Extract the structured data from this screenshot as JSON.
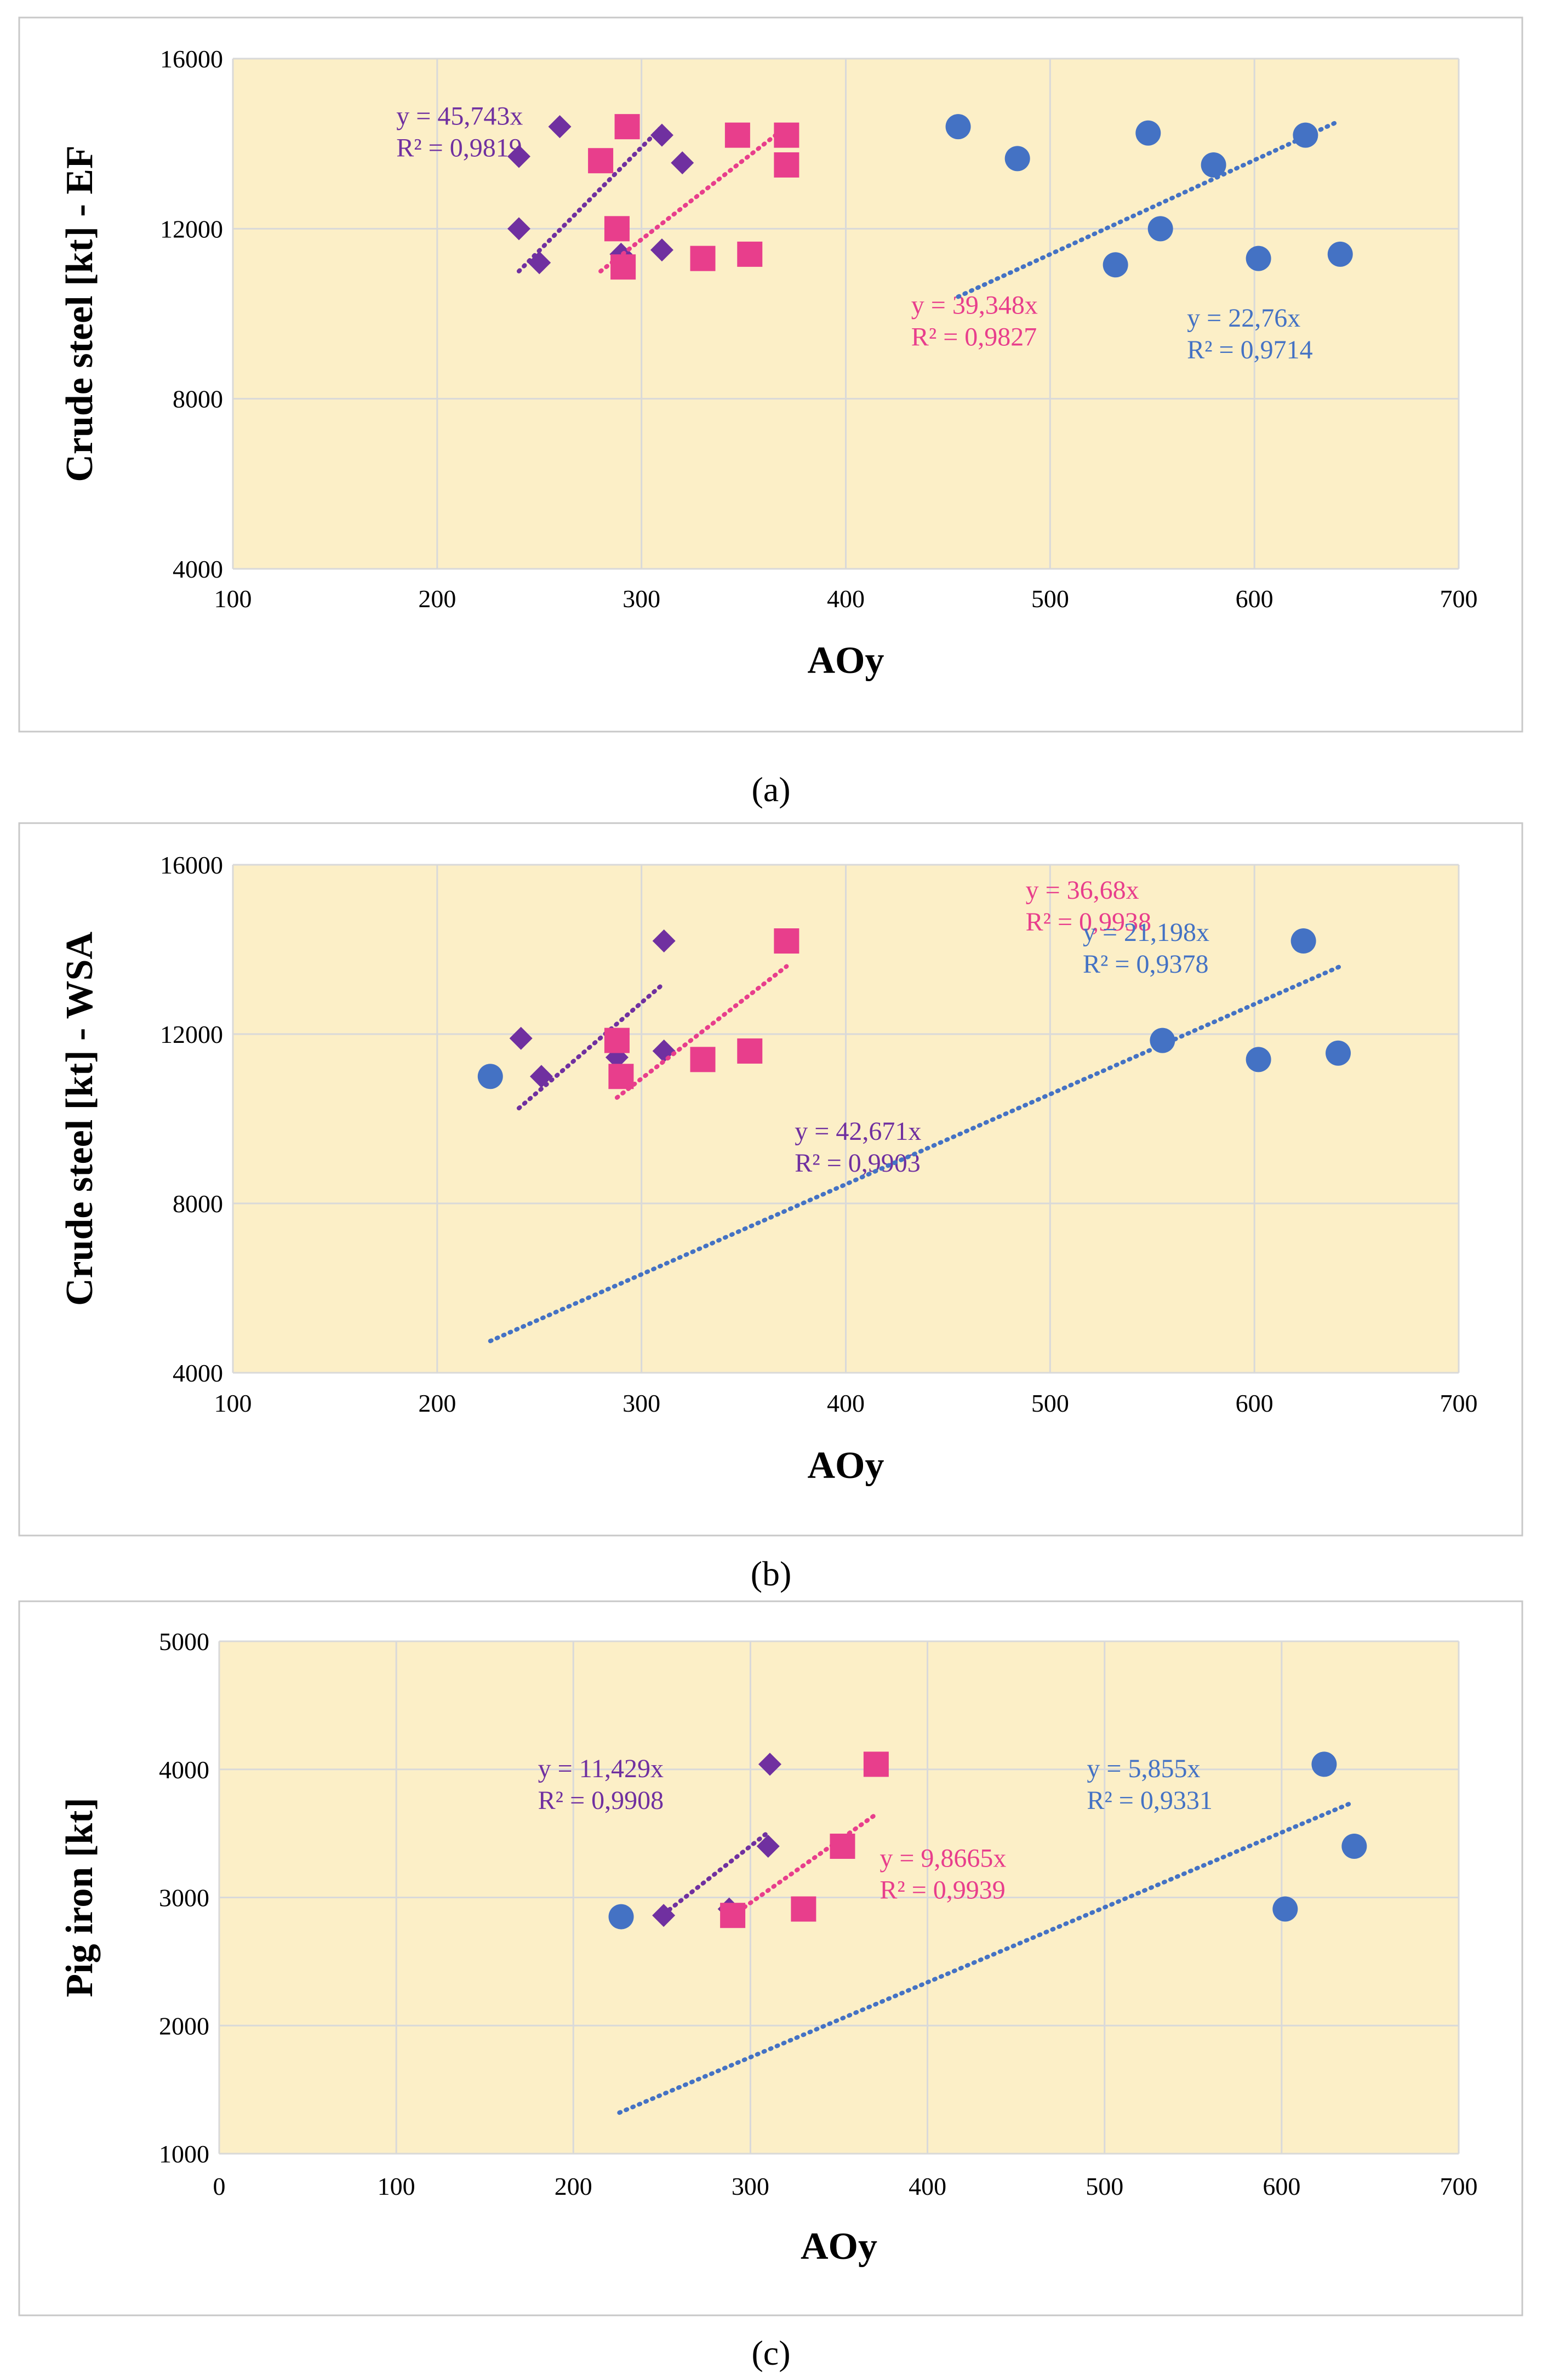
{
  "colors": {
    "plot_bg": "#FCEFC7",
    "grid": "#D9D9D9",
    "border": "#C8C8C8",
    "purple": "#7030A0",
    "pink": "#E83E8C",
    "blue": "#4472C4"
  },
  "chart_data": [
    {
      "type": "scatter",
      "caption": "(a)",
      "xlabel": "AOy",
      "ylabel": "Crude steel [kt] - EF",
      "xlim": [
        100,
        700
      ],
      "ylim": [
        4000,
        16000
      ],
      "xticks": [
        100,
        200,
        300,
        400,
        500,
        600,
        700
      ],
      "yticks": [
        4000,
        8000,
        12000,
        16000
      ],
      "grid": true,
      "series": [
        {
          "name": "purple",
          "marker": "diamond",
          "color": "#7030A0",
          "points": [
            [
              240,
              13700
            ],
            [
              260,
              14400
            ],
            [
              310,
              14200
            ],
            [
              320,
              13550
            ],
            [
              240,
              12000
            ],
            [
              250,
              11200
            ],
            [
              290,
              11400
            ],
            [
              310,
              11500
            ]
          ],
          "trend": {
            "x": [
              240,
              310
            ],
            "y": [
              11000,
              14400
            ]
          },
          "equation": "y = 45,743x",
          "r2": "R² = 0,9819",
          "label_anchor": [
            180,
            14450
          ]
        },
        {
          "name": "pink",
          "marker": "square",
          "color": "#E83E8C",
          "points": [
            [
              280,
              13600
            ],
            [
              293,
              14400
            ],
            [
              347,
              14200
            ],
            [
              371,
              14200
            ],
            [
              371,
              13500
            ],
            [
              288,
              12000
            ],
            [
              291,
              11100
            ],
            [
              330,
              11300
            ],
            [
              353,
              11400
            ]
          ],
          "trend": {
            "x": [
              280,
              371
            ],
            "y": [
              11000,
              14400
            ]
          },
          "equation": "y = 39,348x",
          "r2": "R² = 0,9827",
          "label_anchor": [
            432,
            10000
          ]
        },
        {
          "name": "blue",
          "marker": "circle",
          "color": "#4472C4",
          "points": [
            [
              455,
              14400
            ],
            [
              484,
              13650
            ],
            [
              548,
              14250
            ],
            [
              580,
              13500
            ],
            [
              625,
              14200
            ],
            [
              532,
              11150
            ],
            [
              554,
              12000
            ],
            [
              602,
              11300
            ],
            [
              642,
              11400
            ]
          ],
          "trend": {
            "x": [
              455,
              640
            ],
            "y": [
              10400,
              14500
            ]
          },
          "equation": "y = 22,76x",
          "r2": "R² = 0,9714",
          "label_anchor": [
            567,
            9700
          ]
        }
      ]
    },
    {
      "type": "scatter",
      "caption": "(b)",
      "xlabel": "AOy",
      "ylabel": "Crude steel [kt] - WSA",
      "xlim": [
        100,
        700
      ],
      "ylim": [
        4000,
        16000
      ],
      "xticks": [
        100,
        200,
        300,
        400,
        500,
        600,
        700
      ],
      "yticks": [
        4000,
        8000,
        12000,
        16000
      ],
      "grid": true,
      "series": [
        {
          "name": "purple",
          "marker": "diamond",
          "color": "#7030A0",
          "points": [
            [
              311,
              14200
            ],
            [
              241,
              11900
            ],
            [
              251,
              11000
            ],
            [
              288,
              11450
            ],
            [
              311,
              11600
            ]
          ],
          "trend": {
            "x": [
              240,
              311
            ],
            "y": [
              10250,
              13200
            ]
          },
          "equation": "y = 42,671x",
          "r2": "R² = 0,9903",
          "label_anchor": [
            375,
            9500
          ]
        },
        {
          "name": "pink",
          "marker": "square",
          "color": "#E83E8C",
          "points": [
            [
              371,
              14200
            ],
            [
              288,
              11850
            ],
            [
              290,
              11000
            ],
            [
              330,
              11400
            ],
            [
              353,
              11600
            ]
          ],
          "trend": {
            "x": [
              288,
              371
            ],
            "y": [
              10500,
              13600
            ]
          },
          "equation": "y = 36,68x",
          "r2": "R² = 0,9938",
          "label_anchor": [
            488,
            15200
          ]
        },
        {
          "name": "blue",
          "marker": "circle",
          "color": "#4472C4",
          "points": [
            [
              226,
              11000
            ],
            [
              555,
              11850
            ],
            [
              624,
              14200
            ],
            [
              602,
              11400
            ],
            [
              641,
              11550
            ]
          ],
          "trend": {
            "x": [
              226,
              642
            ],
            "y": [
              4750,
              13600
            ]
          },
          "equation": "y = 21,198x",
          "r2": "R² = 0,9378",
          "label_anchor": [
            516,
            14200
          ]
        }
      ]
    },
    {
      "type": "scatter",
      "caption": "(c)",
      "xlabel": "AOy",
      "ylabel": "Pig iron [kt]",
      "xlim": [
        0,
        700
      ],
      "ylim": [
        1000,
        5000
      ],
      "xticks": [
        0,
        100,
        200,
        300,
        400,
        500,
        600,
        700
      ],
      "yticks": [
        1000,
        2000,
        3000,
        4000,
        5000
      ],
      "grid": true,
      "series": [
        {
          "name": "purple",
          "marker": "diamond",
          "color": "#7030A0",
          "points": [
            [
              311,
              4040
            ],
            [
              310,
              3400
            ],
            [
              251,
              2860
            ],
            [
              288,
              2910
            ]
          ],
          "trend": {
            "x": [
              251,
              311
            ],
            "y": [
              2870,
              3520
            ]
          },
          "equation": "y = 11,429x",
          "r2": "R² = 0,9908",
          "label_anchor": [
            180,
            3940
          ]
        },
        {
          "name": "pink",
          "marker": "square",
          "color": "#E83E8C",
          "points": [
            [
              371,
              4040
            ],
            [
              352,
              3400
            ],
            [
              290,
              2860
            ],
            [
              330,
              2910
            ]
          ],
          "trend": {
            "x": [
              290,
              371
            ],
            "y": [
              2860,
              3650
            ]
          },
          "equation": "y = 9,8665x",
          "r2": "R² = 0,9939",
          "label_anchor": [
            373,
            3240
          ]
        },
        {
          "name": "blue",
          "marker": "circle",
          "color": "#4472C4",
          "points": [
            [
              227,
              2850
            ],
            [
              624,
              4040
            ],
            [
              641,
              3400
            ],
            [
              602,
              2910
            ]
          ],
          "trend": {
            "x": [
              226,
              638
            ],
            "y": [
              1320,
              3730
            ]
          },
          "equation": "y = 5,855x",
          "r2": "R² = 0,9331",
          "label_anchor": [
            490,
            3940
          ]
        }
      ]
    }
  ]
}
